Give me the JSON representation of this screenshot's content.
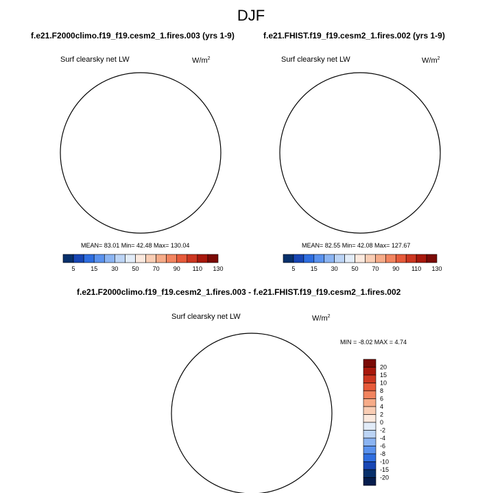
{
  "page": {
    "title": "DJF"
  },
  "panels": [
    {
      "case": "f.e21.F2000climo.f19_f19.cesm2_1.fires.003 (yrs 1-9)",
      "variable": "Surf clearsky net LW",
      "units_base": "W/m",
      "units_exp": "2",
      "stats": "MEAN= 83.01  Min= 42.48  Max= 130.04"
    },
    {
      "case": "f.e21.FHIST.f19_f19.cesm2_1.fires.002 (yrs 1-9)",
      "variable": "Surf clearsky net LW",
      "units_base": "W/m",
      "units_exp": "2",
      "stats": "MEAN= 82.55  Min= 42.08  Max= 127.67"
    }
  ],
  "diff": {
    "title": "f.e21.F2000climo.f19_f19.cesm2_1.fires.003 - f.e21.FHIST.f19_f19.cesm2_1.fires.002",
    "variable": "Surf clearsky net LW",
    "units_base": "W/m",
    "units_exp": "2",
    "stats": "MIN = -8.02 MAX =  4.74"
  },
  "chart_data": [
    {
      "type": "heatmap",
      "projection": "north-polar-stereographic",
      "title": "f.e21.F2000climo.f19_f19.cesm2_1.fires.003 (yrs 1-9)",
      "variable": "Surf clearsky net LW",
      "units": "W/m2",
      "mean": 83.01,
      "min": 42.48,
      "max": 130.04,
      "colorbar": {
        "orientation": "horizontal",
        "ticks": [
          5,
          15,
          30,
          50,
          70,
          90,
          110,
          130
        ]
      }
    },
    {
      "type": "heatmap",
      "projection": "north-polar-stereographic",
      "title": "f.e21.FHIST.f19_f19.cesm2_1.fires.002 (yrs 1-9)",
      "variable": "Surf clearsky net LW",
      "units": "W/m2",
      "mean": 82.55,
      "min": 42.08,
      "max": 127.67,
      "colorbar": {
        "orientation": "horizontal",
        "ticks": [
          5,
          15,
          30,
          50,
          70,
          90,
          110,
          130
        ]
      }
    },
    {
      "type": "heatmap",
      "projection": "north-polar-stereographic",
      "title": "f.e21.F2000climo.f19_f19.cesm2_1.fires.003 - f.e21.FHIST.f19_f19.cesm2_1.fires.002",
      "variable": "Surf clearsky net LW",
      "units": "W/m2",
      "min": -8.02,
      "max": 4.74,
      "colorbar": {
        "orientation": "vertical",
        "ticks": [
          20,
          15,
          10,
          8,
          6,
          4,
          2,
          0,
          -2,
          -4,
          -6,
          -8,
          -10,
          -15,
          -20
        ]
      }
    }
  ],
  "colors": {
    "abs_scale": [
      "#08306b",
      "#1846b4",
      "#2f6ee0",
      "#5a92ee",
      "#8bb4f2",
      "#bcd4f5",
      "#e2ecf8",
      "#fbe9de",
      "#f9cdb4",
      "#f6ab88",
      "#f2845f",
      "#e65a3a",
      "#cc3620",
      "#a8180c",
      "#7a0a06"
    ],
    "diff_scale": [
      "#7a0a06",
      "#a8180c",
      "#cc3620",
      "#e65a3a",
      "#f2845f",
      "#f6ab88",
      "#f9cdb4",
      "#fbe9de",
      "#e2ecf8",
      "#bcd4f5",
      "#8bb4f2",
      "#5a92ee",
      "#2f6ee0",
      "#1846b4",
      "#08306b",
      "#061d4d"
    ],
    "land_outline": "#000000"
  }
}
